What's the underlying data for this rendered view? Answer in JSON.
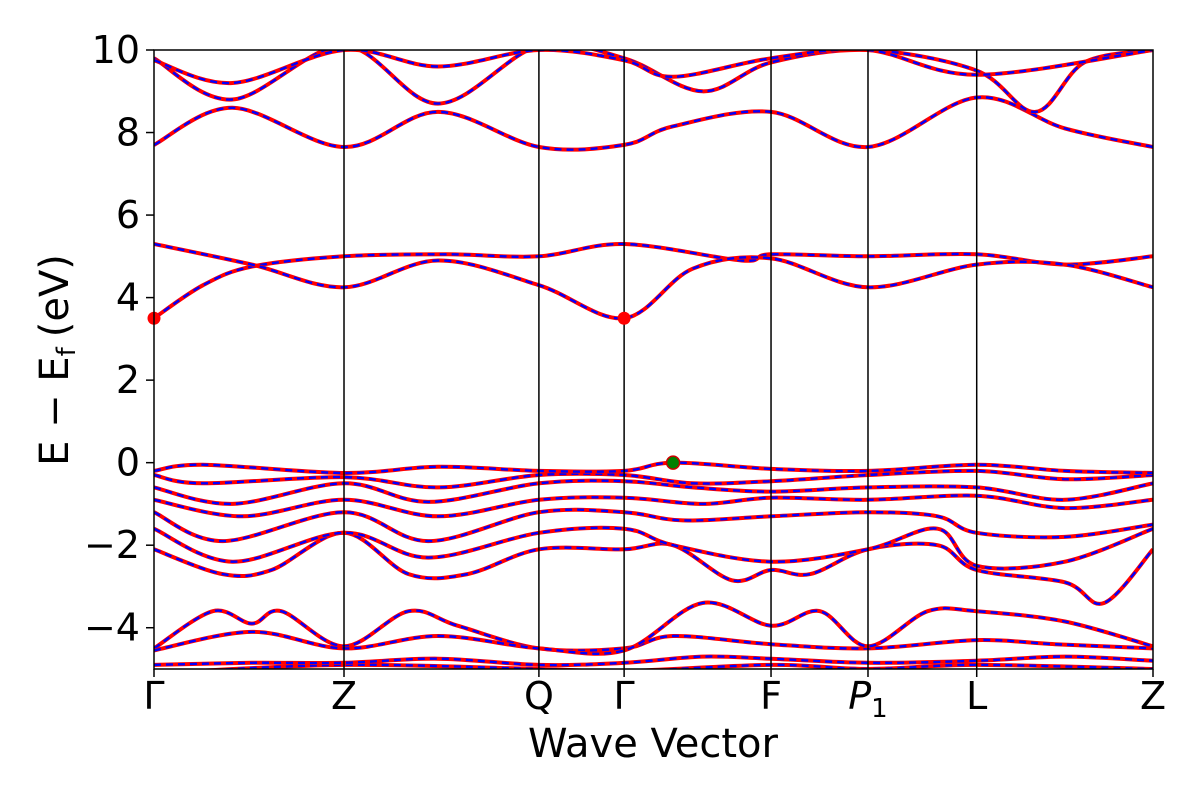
{
  "chart_data": {
    "type": "line",
    "xlabel": "Wave Vector",
    "ylabel_main": "E − E",
    "ylabel_sub": "f",
    "ylabel_unit": "(eV)",
    "ylim": [
      -5,
      10
    ],
    "yticks": [
      -4,
      -2,
      0,
      2,
      4,
      6,
      8,
      10
    ],
    "ytick_labels": [
      "−4",
      "−2",
      "0",
      "2",
      "4",
      "6",
      "8",
      "10"
    ],
    "kpoint_positions": [
      0,
      1.94,
      3.93,
      4.8,
      6.3,
      7.29,
      8.4,
      10.2
    ],
    "kpoint_labels": [
      {
        "main": "Γ",
        "sub": ""
      },
      {
        "main": "Z",
        "sub": ""
      },
      {
        "main": "Q",
        "sub": ""
      },
      {
        "main": "Γ",
        "sub": ""
      },
      {
        "main": "F",
        "sub": ""
      },
      {
        "main": "P",
        "sub": "1"
      },
      {
        "main": "L",
        "sub": ""
      },
      {
        "main": "Z",
        "sub": ""
      }
    ],
    "xlim": [
      0,
      10.2
    ],
    "grid": false,
    "line_colors": {
      "spin_up": "#ff0000",
      "spin_down": "#0000ff"
    },
    "marker_colors": {
      "cbm": "#ff0000",
      "vbm": "#008000"
    },
    "markers": [
      {
        "role": "cbm",
        "x": 0.0,
        "y": 3.5
      },
      {
        "role": "cbm",
        "x": 4.8,
        "y": 3.5
      },
      {
        "role": "vbm",
        "x": 5.3,
        "y": 0.0
      }
    ],
    "bands": [
      [
        [
          0,
          -5.1
        ],
        [
          1.94,
          -4.9
        ],
        [
          3.93,
          -5.0
        ],
        [
          4.8,
          -5.05
        ],
        [
          6.3,
          -4.9
        ],
        [
          7.29,
          -5.0
        ],
        [
          8.4,
          -4.9
        ],
        [
          10.2,
          -5.0
        ]
      ],
      [
        [
          0,
          -4.9
        ],
        [
          1.0,
          -4.85
        ],
        [
          1.94,
          -4.85
        ],
        [
          2.9,
          -4.75
        ],
        [
          3.93,
          -4.9
        ],
        [
          4.8,
          -4.85
        ],
        [
          5.6,
          -4.7
        ],
        [
          6.3,
          -4.75
        ],
        [
          7.29,
          -4.85
        ],
        [
          8.4,
          -4.8
        ],
        [
          9.3,
          -4.7
        ],
        [
          10.2,
          -4.8
        ]
      ],
      [
        [
          0,
          -4.5
        ],
        [
          0.6,
          -3.6
        ],
        [
          1.0,
          -3.9
        ],
        [
          1.3,
          -3.6
        ],
        [
          1.94,
          -4.45
        ],
        [
          2.6,
          -3.6
        ],
        [
          3.1,
          -3.95
        ],
        [
          3.93,
          -4.5
        ],
        [
          4.8,
          -4.5
        ],
        [
          5.3,
          -4.2
        ],
        [
          6.3,
          -4.4
        ],
        [
          7.29,
          -4.5
        ],
        [
          8.4,
          -4.3
        ],
        [
          9.2,
          -4.4
        ],
        [
          10.2,
          -4.5
        ]
      ],
      [
        [
          0,
          -4.55
        ],
        [
          1.0,
          -4.1
        ],
        [
          1.94,
          -4.5
        ],
        [
          2.9,
          -4.2
        ],
        [
          3.93,
          -4.5
        ],
        [
          4.8,
          -4.55
        ],
        [
          5.6,
          -3.4
        ],
        [
          6.3,
          -3.95
        ],
        [
          6.8,
          -3.6
        ],
        [
          7.29,
          -4.45
        ],
        [
          7.9,
          -3.6
        ],
        [
          8.4,
          -3.6
        ],
        [
          9.3,
          -3.85
        ],
        [
          10.2,
          -4.45
        ]
      ],
      [
        [
          0,
          -2.1
        ],
        [
          0.7,
          -2.7
        ],
        [
          1.2,
          -2.6
        ],
        [
          1.94,
          -1.7
        ],
        [
          2.6,
          -2.7
        ],
        [
          3.2,
          -2.7
        ],
        [
          3.93,
          -2.1
        ],
        [
          4.8,
          -2.1
        ],
        [
          5.3,
          -2.0
        ],
        [
          5.9,
          -2.85
        ],
        [
          6.3,
          -2.6
        ],
        [
          6.7,
          -2.7
        ],
        [
          7.29,
          -2.1
        ],
        [
          8.0,
          -2.0
        ],
        [
          8.4,
          -2.6
        ],
        [
          9.3,
          -2.9
        ],
        [
          9.7,
          -3.4
        ],
        [
          10.2,
          -2.1
        ]
      ],
      [
        [
          0,
          -1.6
        ],
        [
          0.8,
          -2.4
        ],
        [
          1.94,
          -1.7
        ],
        [
          2.8,
          -2.3
        ],
        [
          3.93,
          -1.7
        ],
        [
          4.8,
          -1.6
        ],
        [
          5.3,
          -2.0
        ],
        [
          6.3,
          -2.4
        ],
        [
          7.29,
          -2.1
        ],
        [
          8.0,
          -1.6
        ],
        [
          8.4,
          -2.5
        ],
        [
          9.3,
          -2.4
        ],
        [
          10.2,
          -1.6
        ]
      ],
      [
        [
          0,
          -1.2
        ],
        [
          0.7,
          -1.9
        ],
        [
          1.94,
          -1.2
        ],
        [
          2.8,
          -1.9
        ],
        [
          3.93,
          -1.2
        ],
        [
          4.8,
          -1.2
        ],
        [
          5.4,
          -1.4
        ],
        [
          6.3,
          -1.3
        ],
        [
          7.29,
          -1.2
        ],
        [
          8.0,
          -1.3
        ],
        [
          8.4,
          -1.7
        ],
        [
          9.3,
          -1.8
        ],
        [
          10.2,
          -1.5
        ]
      ],
      [
        [
          0,
          -0.9
        ],
        [
          0.9,
          -1.3
        ],
        [
          1.94,
          -0.9
        ],
        [
          2.9,
          -1.3
        ],
        [
          3.93,
          -0.9
        ],
        [
          4.8,
          -0.85
        ],
        [
          5.6,
          -1.0
        ],
        [
          6.3,
          -0.85
        ],
        [
          7.29,
          -0.9
        ],
        [
          8.4,
          -0.8
        ],
        [
          9.3,
          -1.1
        ],
        [
          10.2,
          -0.9
        ]
      ],
      [
        [
          0,
          -0.6
        ],
        [
          0.8,
          -1.0
        ],
        [
          1.94,
          -0.5
        ],
        [
          2.8,
          -0.95
        ],
        [
          3.93,
          -0.5
        ],
        [
          4.8,
          -0.45
        ],
        [
          5.5,
          -0.6
        ],
        [
          6.3,
          -0.7
        ],
        [
          7.29,
          -0.6
        ],
        [
          8.4,
          -0.6
        ],
        [
          9.3,
          -0.9
        ],
        [
          10.2,
          -0.5
        ]
      ],
      [
        [
          0,
          -0.3
        ],
        [
          0.5,
          -0.5
        ],
        [
          1.94,
          -0.35
        ],
        [
          2.9,
          -0.6
        ],
        [
          3.93,
          -0.3
        ],
        [
          4.8,
          -0.3
        ],
        [
          5.5,
          -0.5
        ],
        [
          6.3,
          -0.45
        ],
        [
          7.29,
          -0.3
        ],
        [
          8.4,
          -0.2
        ],
        [
          9.3,
          -0.4
        ],
        [
          10.2,
          -0.3
        ]
      ],
      [
        [
          0,
          -0.2
        ],
        [
          0.5,
          -0.05
        ],
        [
          1.94,
          -0.25
        ],
        [
          2.9,
          -0.1
        ],
        [
          3.93,
          -0.2
        ],
        [
          4.8,
          -0.2
        ],
        [
          5.3,
          0.0
        ],
        [
          6.3,
          -0.15
        ],
        [
          7.29,
          -0.2
        ],
        [
          8.4,
          -0.05
        ],
        [
          9.3,
          -0.2
        ],
        [
          10.2,
          -0.25
        ]
      ],
      [
        [
          0,
          3.5
        ],
        [
          0.5,
          4.3
        ],
        [
          1.0,
          4.75
        ],
        [
          1.94,
          5.0
        ],
        [
          3.0,
          5.05
        ],
        [
          3.93,
          5.0
        ],
        [
          4.8,
          5.3
        ],
        [
          6.0,
          4.9
        ],
        [
          6.3,
          5.05
        ],
        [
          7.29,
          5.0
        ],
        [
          8.4,
          5.05
        ],
        [
          9.3,
          4.8
        ],
        [
          10.2,
          5.0
        ]
      ],
      [
        [
          0,
          5.3
        ],
        [
          1.0,
          4.8
        ],
        [
          1.94,
          4.25
        ],
        [
          2.9,
          4.9
        ],
        [
          3.93,
          4.3
        ],
        [
          4.8,
          3.5
        ],
        [
          5.5,
          4.7
        ],
        [
          6.3,
          4.95
        ],
        [
          7.29,
          4.25
        ],
        [
          8.4,
          4.8
        ],
        [
          9.3,
          4.8
        ],
        [
          10.2,
          4.25
        ]
      ],
      [
        [
          0,
          7.7
        ],
        [
          0.8,
          8.6
        ],
        [
          1.94,
          7.65
        ],
        [
          2.9,
          8.5
        ],
        [
          3.93,
          7.65
        ],
        [
          4.8,
          7.7
        ],
        [
          5.3,
          8.15
        ],
        [
          6.3,
          8.5
        ],
        [
          7.29,
          7.65
        ],
        [
          8.4,
          8.85
        ],
        [
          9.3,
          8.1
        ],
        [
          10.2,
          7.65
        ]
      ],
      [
        [
          0,
          9.8
        ],
        [
          0.8,
          8.8
        ],
        [
          1.94,
          10.1
        ],
        [
          2.9,
          8.7
        ],
        [
          3.93,
          10.1
        ],
        [
          4.8,
          9.8
        ],
        [
          5.6,
          9.0
        ],
        [
          6.3,
          9.7
        ],
        [
          7.29,
          10.0
        ],
        [
          8.4,
          9.5
        ],
        [
          9.0,
          8.5
        ],
        [
          9.5,
          9.7
        ],
        [
          10.2,
          10.0
        ]
      ],
      [
        [
          0,
          9.75
        ],
        [
          0.8,
          9.2
        ],
        [
          1.94,
          10.0
        ],
        [
          2.9,
          9.6
        ],
        [
          3.93,
          10.0
        ],
        [
          4.8,
          9.75
        ],
        [
          5.3,
          9.35
        ],
        [
          6.3,
          9.8
        ],
        [
          7.29,
          10.0
        ],
        [
          8.4,
          9.4
        ],
        [
          10.2,
          10.0
        ]
      ]
    ]
  }
}
